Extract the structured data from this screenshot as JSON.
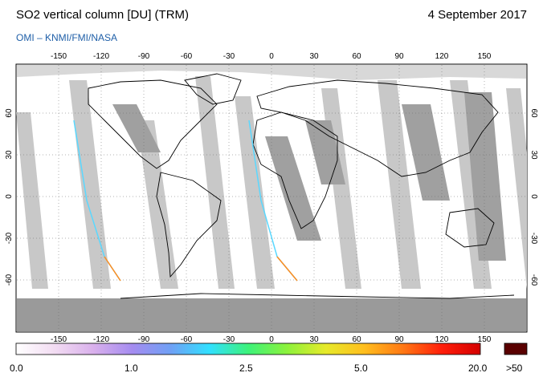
{
  "header": {
    "title": "SO2 vertical column [DU] (TRM)",
    "subtitle": "OMI  –  KNMI/FMI/NASA",
    "date": "4 September 2017"
  },
  "axes": {
    "lon_ticks": [
      "-150",
      "-120",
      "-90",
      "-60",
      "-30",
      "0",
      "30",
      "60",
      "90",
      "120",
      "150"
    ],
    "lat_ticks": [
      "60",
      "30",
      "0",
      "-30",
      "-60"
    ]
  },
  "colorbar": {
    "labels": [
      "0.0",
      "1.0",
      "2.5",
      "5.0",
      "20.0"
    ],
    "overflow_label": ">50",
    "colors": [
      "#ffffff",
      "#f2dcf2",
      "#d9b0ec",
      "#a58cf0",
      "#6fa0f5",
      "#31e0ff",
      "#3cf27a",
      "#8cf23c",
      "#e6ea2a",
      "#ffbe1e",
      "#ff7814",
      "#ff1e0a",
      "#d40000"
    ],
    "overflow_color": "#5a0000"
  },
  "colors": {
    "ocean_fill": "#ffffff",
    "swath_gap": "#c8c8c8",
    "swath_dark": "#a0a0a0",
    "polar_night": "#9a9a9a",
    "coastline": "#000000",
    "subtitle": "#1f5fa8"
  }
}
